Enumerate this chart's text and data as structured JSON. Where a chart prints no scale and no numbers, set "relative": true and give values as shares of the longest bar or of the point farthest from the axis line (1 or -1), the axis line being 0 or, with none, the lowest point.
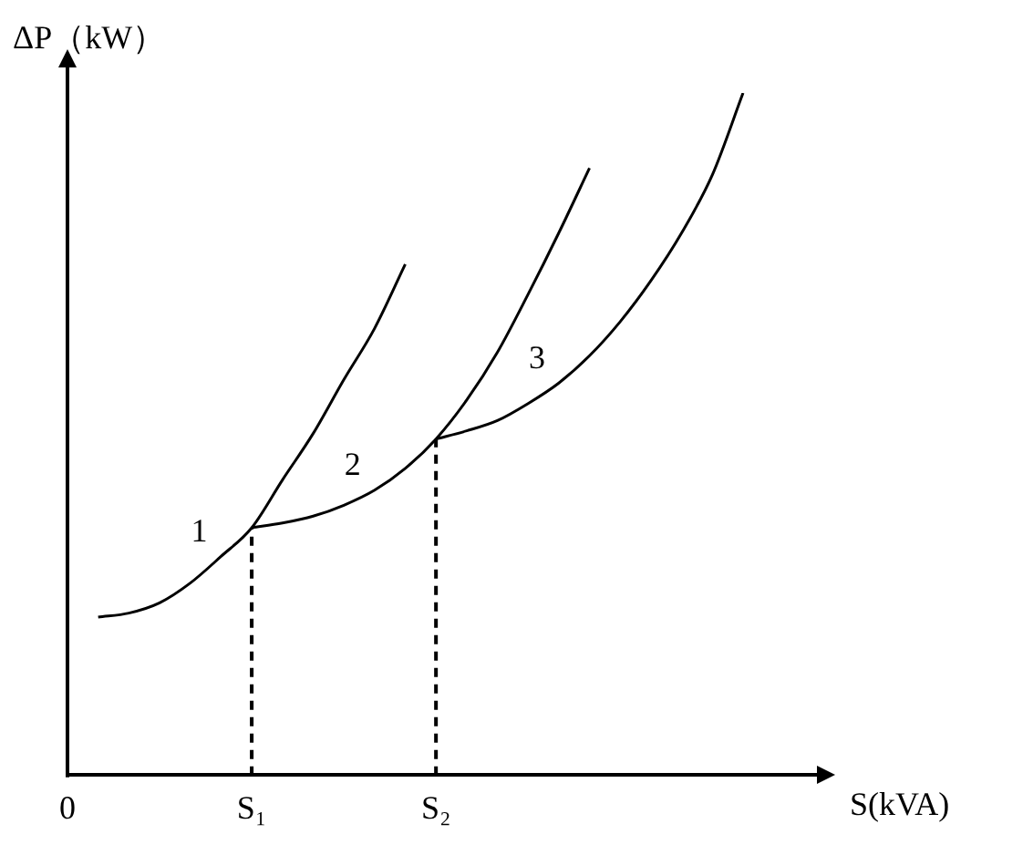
{
  "chart_data": {
    "type": "line",
    "relative": true,
    "xlabel": "S(kVA)",
    "ylabel": "ΔP（kW）",
    "categories": [
      "0",
      null,
      null,
      null,
      null,
      null,
      "S₁",
      null,
      null,
      null,
      null,
      null,
      "S₂",
      null,
      null,
      null,
      null,
      null,
      null,
      null,
      null,
      null,
      null,
      null,
      null,
      null
    ],
    "series": [
      {
        "name": "1",
        "color": "#000000",
        "values": [
          null,
          0.232,
          0.238,
          0.253,
          0.282,
          0.321,
          0.363,
          0.433,
          0.501,
          0.58,
          0.655,
          0.749,
          null,
          null,
          null,
          null,
          null,
          null,
          null,
          null,
          null,
          null,
          null,
          null,
          null,
          null
        ]
      },
      {
        "name": "2",
        "color": "#000000",
        "values": [
          null,
          null,
          null,
          null,
          null,
          null,
          0.363,
          0.37,
          0.38,
          0.396,
          0.418,
          0.45,
          0.493,
          0.55,
          0.62,
          0.705,
          0.795,
          0.89,
          null,
          null,
          null,
          null,
          null,
          null,
          null,
          null
        ]
      },
      {
        "name": "3",
        "color": "#000000",
        "values": [
          null,
          null,
          null,
          null,
          null,
          null,
          null,
          null,
          null,
          null,
          null,
          null,
          0.493,
          0.505,
          0.52,
          0.545,
          0.575,
          0.615,
          0.665,
          0.725,
          0.795,
          0.88,
          1,
          null,
          null,
          null
        ]
      }
    ],
    "ref_lines": [
      {
        "axis": "x",
        "value": "S₁",
        "line_style": "dashed",
        "color": "#000000"
      },
      {
        "axis": "x",
        "value": "S₂",
        "line_style": "dashed",
        "color": "#000000"
      }
    ],
    "legend": false,
    "grid": false,
    "marker": "none",
    "line_style": "solid"
  }
}
